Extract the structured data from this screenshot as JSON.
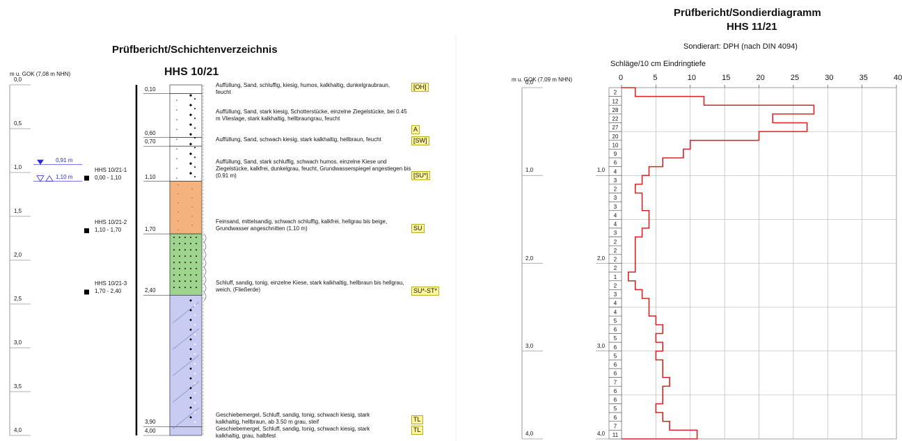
{
  "left": {
    "title": "Prüfbericht/Schichtenverzeichnis",
    "borehole_id": "HHS 10/21",
    "axis_label": "m u. GOK (7,08 m NHN)",
    "depth_ticks": [
      "0,0",
      "0,5",
      "1,0",
      "1,5",
      "2,0",
      "2,5",
      "3,0",
      "3,5",
      "4,0"
    ],
    "water_levels": [
      "0,91 m",
      "1,10 m"
    ],
    "samples": [
      {
        "name": "HHS 10/21-1",
        "range": "0,00 - 1,10"
      },
      {
        "name": "HHS 10/21-2",
        "range": "1,10 - 1,70"
      },
      {
        "name": "HHS 10/21-3",
        "range": "1,70 - 2,40"
      }
    ],
    "layer_depths": [
      "0,10",
      "0,60",
      "0,70",
      "1,10",
      "1,70",
      "2,40",
      "3,90",
      "4,00"
    ],
    "descriptions": [
      "Auffüllung, Sand, schluffig, kiesig, humos, kalkhaltig, dunkelgraubraun, feucht",
      "Auffüllung, Sand, stark kiesig, Schotterstücke, einzelne Ziegelstücke, bei 0.45 m Vlieslage, stark kalkhaltig, hellbraungrau, feucht",
      "Auffüllung, Sand, schwach kiesig, stark kalkhaltig, hellbraun, feucht",
      "Auffüllung, Sand, stark schluffig, schwach humos, einzelne Kiese und Ziegelstücke, kalkfrei, dunkelgrau, feucht, Grundwasserspiegel angestiegen bis (0.91 m)",
      "Feinsand, mittelsandig, schwach schluffig, kalkfrei, hellgrau bis beige, Grundwasser angeschnitten (1.10 m)",
      "Schluff, sandig, tonig, einzelne Kiese, stark kalkhaltig, hellbraun bis hellgrau, weich, (Fließerde)",
      "Geschiebemergel, Schluff, sandig, tonig, schwach kiesig, stark kalkhaltig, hellbraun, ab 3.50 m grau, steif",
      "Geschiebemergel, Schluff, sandig, tonig, schwach kiesig, stark kalkhaltig, grau, halbfest"
    ],
    "codes": [
      "[OH]",
      "A",
      "[SW]",
      "[SU*]",
      "SU",
      "SU*-ST*",
      "TL",
      "TL"
    ],
    "colors": {
      "sand": "#f4b27e",
      "silt": "#9fd48f",
      "marl": "#c8ccf2",
      "water": "#2a2ad6"
    }
  },
  "right": {
    "title": "Prüfbericht/Sondierdiagramm",
    "borehole_id": "HHS 11/21",
    "method": "Sondierart: DPH (nach DIN 4094)",
    "axis_title": "Schläge/10 cm Eindringtiefe",
    "axis_label": "m u. GOK (7,09 m NHN)",
    "x_ticks": [
      "0",
      "5",
      "10",
      "15",
      "20",
      "25",
      "30",
      "35",
      "40"
    ],
    "depth_ticks_outer": [
      "0,0",
      "1,0",
      "2,0",
      "3,0",
      "4,0"
    ],
    "depth_ticks_inner": [
      "1,0",
      "2,0",
      "3,0",
      "4,0"
    ],
    "line_color": "#e02020"
  },
  "chart_data": {
    "type": "bar",
    "title": "Schläge/10 cm Eindringtiefe",
    "xlabel": "Schläge/10 cm Eindringtiefe",
    "ylabel": "m u. GOK (7,09 m NHN)",
    "xlim": [
      0,
      40
    ],
    "ylim": [
      0,
      4.0
    ],
    "interval_m": 0.1,
    "blows": [
      2,
      12,
      28,
      22,
      27,
      20,
      10,
      9,
      6,
      4,
      3,
      2,
      3,
      3,
      4,
      4,
      3,
      2,
      2,
      2,
      2,
      1,
      2,
      3,
      4,
      4,
      5,
      6,
      5,
      6,
      5,
      6,
      6,
      7,
      6,
      6,
      5,
      6,
      7,
      11
    ]
  }
}
